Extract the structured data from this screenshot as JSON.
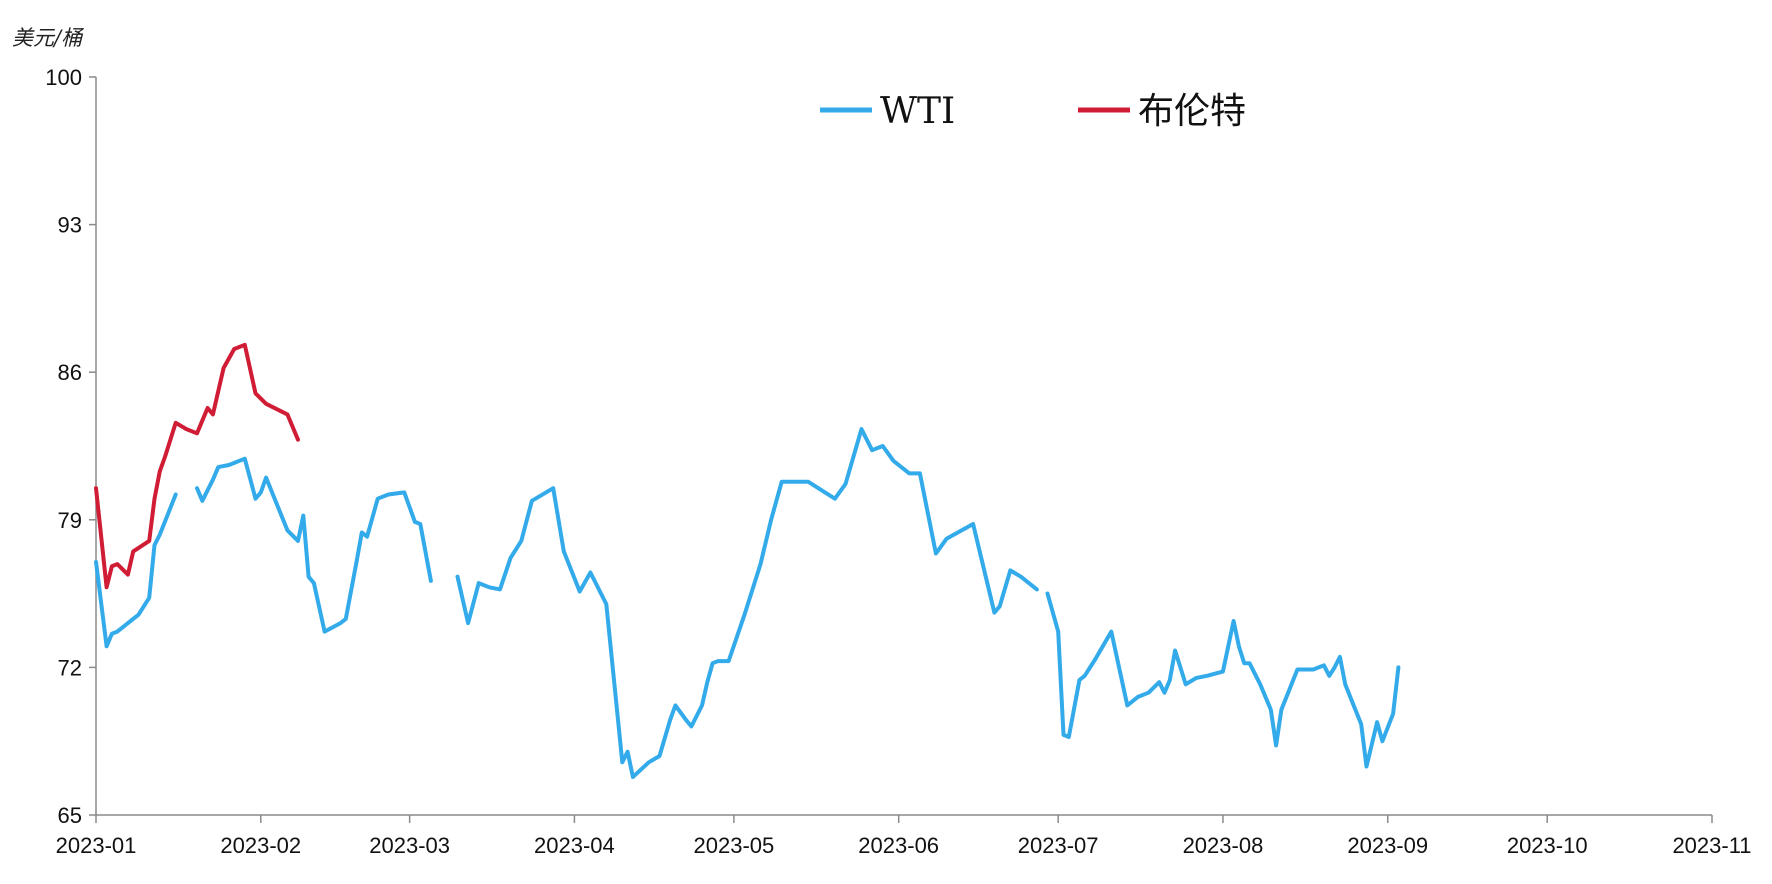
{
  "chart_data": {
    "type": "line",
    "unit_label": "美元/桶",
    "xlabel": "",
    "ylabel": "美元/桶",
    "ylim": [
      65,
      100
    ],
    "yticks": [
      65,
      72,
      79,
      86,
      93,
      100
    ],
    "xlim": [
      "2023-01-01",
      "2023-11-01"
    ],
    "xticks": [
      "2023-01",
      "2023-02",
      "2023-03",
      "2023-04",
      "2023-05",
      "2023-06",
      "2023-07",
      "2023-08",
      "2023-09",
      "2023-10",
      "2023-11"
    ],
    "legend_position": "top-center",
    "grid": false,
    "colors": {
      "WTI": "#33aaea",
      "布伦特": "#d01c34"
    },
    "series": [
      {
        "name": "WTI",
        "color": "#33aaea",
        "segments": [
          [
            [
              "2023-01-01",
              77.0
            ],
            [
              "2023-01-03",
              73.0
            ],
            [
              "2023-01-04",
              73.6
            ],
            [
              "2023-01-05",
              73.7
            ],
            [
              "2023-01-09",
              74.5
            ],
            [
              "2023-01-11",
              75.3
            ],
            [
              "2023-01-12",
              77.8
            ],
            [
              "2023-01-13",
              78.3
            ],
            [
              "2023-01-16",
              80.2
            ]
          ],
          [
            [
              "2023-01-20",
              80.5
            ],
            [
              "2023-01-21",
              79.9
            ],
            [
              "2023-01-23",
              80.9
            ],
            [
              "2023-01-24",
              81.5
            ],
            [
              "2023-01-26",
              81.6
            ],
            [
              "2023-01-29",
              81.9
            ],
            [
              "2023-01-31",
              80.0
            ],
            [
              "2023-02-01",
              80.3
            ],
            [
              "2023-02-02",
              81.0
            ],
            [
              "2023-02-06",
              78.5
            ],
            [
              "2023-02-08",
              78.0
            ],
            [
              "2023-02-09",
              79.2
            ],
            [
              "2023-02-10",
              76.3
            ],
            [
              "2023-02-11",
              76.0
            ],
            [
              "2023-02-13",
              73.7
            ],
            [
              "2023-02-16",
              74.1
            ],
            [
              "2023-02-17",
              74.3
            ],
            [
              "2023-02-19",
              77.0
            ],
            [
              "2023-02-20",
              78.4
            ],
            [
              "2023-02-21",
              78.2
            ],
            [
              "2023-02-23",
              80.0
            ],
            [
              "2023-02-25",
              80.2
            ],
            [
              "2023-02-28",
              80.3
            ],
            [
              "2023-03-02",
              78.9
            ],
            [
              "2023-03-03",
              78.8
            ],
            [
              "2023-03-05",
              76.1
            ]
          ],
          [
            [
              "2023-03-10",
              76.3
            ],
            [
              "2023-03-12",
              74.1
            ],
            [
              "2023-03-14",
              76.0
            ],
            [
              "2023-03-16",
              75.8
            ],
            [
              "2023-03-18",
              75.7
            ],
            [
              "2023-03-20",
              77.2
            ],
            [
              "2023-03-22",
              78.0
            ],
            [
              "2023-03-24",
              79.9
            ],
            [
              "2023-03-28",
              80.5
            ],
            [
              "2023-03-30",
              77.5
            ],
            [
              "2023-04-02",
              75.6
            ],
            [
              "2023-04-04",
              76.5
            ],
            [
              "2023-04-07",
              75.0
            ],
            [
              "2023-04-10",
              67.5
            ],
            [
              "2023-04-11",
              68.0
            ],
            [
              "2023-04-12",
              66.8
            ],
            [
              "2023-04-15",
              67.5
            ],
            [
              "2023-04-17",
              67.8
            ],
            [
              "2023-04-19",
              69.5
            ],
            [
              "2023-04-20",
              70.2
            ],
            [
              "2023-04-22",
              69.5
            ],
            [
              "2023-04-23",
              69.2
            ],
            [
              "2023-04-25",
              70.2
            ],
            [
              "2023-04-26",
              71.3
            ],
            [
              "2023-04-27",
              72.2
            ],
            [
              "2023-04-28",
              72.3
            ],
            [
              "2023-04-30",
              72.3
            ],
            [
              "2023-05-03",
              74.5
            ],
            [
              "2023-05-06",
              76.9
            ],
            [
              "2023-05-08",
              79.0
            ],
            [
              "2023-05-10",
              80.8
            ],
            [
              "2023-05-12",
              80.8
            ],
            [
              "2023-05-15",
              80.8
            ],
            [
              "2023-05-20",
              80.0
            ],
            [
              "2023-05-22",
              80.7
            ],
            [
              "2023-05-25",
              83.3
            ],
            [
              "2023-05-27",
              82.3
            ],
            [
              "2023-05-29",
              82.5
            ],
            [
              "2023-05-31",
              81.8
            ],
            [
              "2023-06-03",
              81.2
            ],
            [
              "2023-06-05",
              81.2
            ],
            [
              "2023-06-08",
              77.4
            ],
            [
              "2023-06-10",
              78.1
            ],
            [
              "2023-06-15",
              78.8
            ],
            [
              "2023-06-19",
              74.6
            ],
            [
              "2023-06-20",
              74.9
            ],
            [
              "2023-06-22",
              76.6
            ],
            [
              "2023-06-24",
              76.3
            ],
            [
              "2023-06-27",
              75.7
            ]
          ],
          [
            [
              "2023-06-29",
              75.5
            ],
            [
              "2023-07-01",
              73.7
            ],
            [
              "2023-07-02",
              68.8
            ],
            [
              "2023-07-03",
              68.7
            ],
            [
              "2023-07-05",
              71.4
            ],
            [
              "2023-07-06",
              71.6
            ],
            [
              "2023-07-08",
              72.4
            ],
            [
              "2023-07-11",
              73.7
            ],
            [
              "2023-07-14",
              70.2
            ],
            [
              "2023-07-16",
              70.6
            ],
            [
              "2023-07-18",
              70.8
            ],
            [
              "2023-07-20",
              71.3
            ],
            [
              "2023-07-21",
              70.8
            ],
            [
              "2023-07-22",
              71.4
            ],
            [
              "2023-07-23",
              72.8
            ],
            [
              "2023-07-25",
              71.2
            ],
            [
              "2023-07-27",
              71.5
            ],
            [
              "2023-07-29",
              71.6
            ],
            [
              "2023-08-01",
              71.8
            ],
            [
              "2023-08-03",
              74.2
            ],
            [
              "2023-08-04",
              73.0
            ],
            [
              "2023-08-05",
              72.2
            ],
            [
              "2023-08-06",
              72.2
            ],
            [
              "2023-08-08",
              71.2
            ],
            [
              "2023-08-10",
              70.0
            ],
            [
              "2023-08-11",
              68.3
            ],
            [
              "2023-08-12",
              70.0
            ],
            [
              "2023-08-15",
              71.9
            ],
            [
              "2023-08-18",
              71.9
            ],
            [
              "2023-08-20",
              72.1
            ],
            [
              "2023-08-21",
              71.6
            ],
            [
              "2023-08-22",
              72.0
            ],
            [
              "2023-08-23",
              72.5
            ],
            [
              "2023-08-24",
              71.2
            ],
            [
              "2023-08-27",
              69.3
            ],
            [
              "2023-08-28",
              67.3
            ],
            [
              "2023-08-30",
              69.4
            ],
            [
              "2023-08-31",
              68.5
            ],
            [
              "2023-09-02",
              69.8
            ],
            [
              "2023-09-03",
              72.0
            ]
          ]
        ]
      },
      {
        "name": "布伦特",
        "color": "#d01c34",
        "segments": [
          [
            [
              "2023-01-01",
              80.5
            ],
            [
              "2023-01-03",
              75.8
            ],
            [
              "2023-01-04",
              76.8
            ],
            [
              "2023-01-05",
              76.9
            ],
            [
              "2023-01-07",
              76.4
            ],
            [
              "2023-01-08",
              77.5
            ],
            [
              "2023-01-11",
              78.0
            ],
            [
              "2023-01-12",
              80.0
            ],
            [
              "2023-01-13",
              81.3
            ],
            [
              "2023-01-14",
              82.0
            ],
            [
              "2023-01-16",
              83.6
            ],
            [
              "2023-01-18",
              83.3
            ],
            [
              "2023-01-20",
              83.1
            ],
            [
              "2023-01-22",
              84.3
            ],
            [
              "2023-01-23",
              84.0
            ],
            [
              "2023-01-25",
              86.2
            ],
            [
              "2023-01-27",
              87.1
            ],
            [
              "2023-01-29",
              87.3
            ],
            [
              "2023-01-31",
              85.0
            ],
            [
              "2023-02-02",
              84.5
            ],
            [
              "2023-02-06",
              84.0
            ],
            [
              "2023-02-08",
              82.8
            ]
          ]
        ]
      }
    ]
  }
}
